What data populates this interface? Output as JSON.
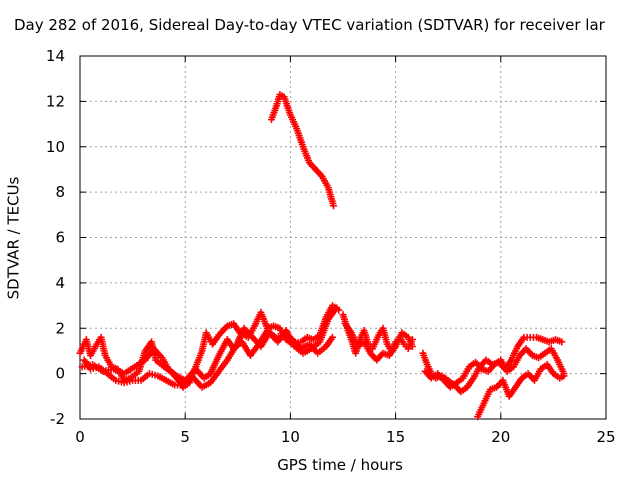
{
  "chart_data": {
    "type": "scatter",
    "title": "Day 282 of 2016, Sidereal Day-to-day VTEC variation (SDTVAR) for receiver lar",
    "xlabel": "GPS time / hours",
    "ylabel": "SDTVAR / TECUs",
    "xlim": [
      0,
      25
    ],
    "ylim": [
      -2,
      14
    ],
    "xticks": [
      "0",
      "5",
      "10",
      "15",
      "20",
      "25"
    ],
    "yticks": [
      "-2",
      "0",
      "2",
      "4",
      "6",
      "8",
      "10",
      "12",
      "14"
    ],
    "grid": true,
    "marker": "plus",
    "color": "#ff0000",
    "series": [
      {
        "points": [
          [
            9.1,
            11.2
          ],
          [
            9.3,
            11.7
          ],
          [
            9.5,
            12.3
          ],
          [
            9.7,
            12.2
          ],
          [
            10.0,
            11.4
          ],
          [
            10.3,
            10.8
          ],
          [
            10.6,
            10.0
          ],
          [
            10.9,
            9.3
          ],
          [
            11.2,
            9.0
          ],
          [
            11.5,
            8.7
          ],
          [
            11.8,
            8.2
          ],
          [
            12.05,
            7.4
          ]
        ]
      },
      {
        "points": [
          [
            0.0,
            0.9
          ],
          [
            0.3,
            1.5
          ],
          [
            0.5,
            0.8
          ],
          [
            0.8,
            1.3
          ],
          [
            1.0,
            1.6
          ],
          [
            1.2,
            0.8
          ],
          [
            1.5,
            0.3
          ],
          [
            1.8,
            0.2
          ],
          [
            2.1,
            -0.3
          ],
          [
            2.4,
            -0.2
          ],
          [
            2.8,
            0.1
          ],
          [
            3.1,
            1.0
          ],
          [
            3.4,
            1.4
          ],
          [
            3.6,
            0.6
          ],
          [
            4.0,
            0.3
          ],
          [
            4.3,
            0.1
          ],
          [
            4.6,
            -0.2
          ],
          [
            4.9,
            -0.6
          ],
          [
            5.2,
            -0.4
          ],
          [
            5.5,
            0.3
          ],
          [
            5.8,
            1.0
          ],
          [
            6.0,
            1.8
          ],
          [
            6.3,
            1.3
          ],
          [
            6.6,
            1.7
          ],
          [
            7.0,
            2.1
          ],
          [
            7.3,
            2.2
          ],
          [
            7.6,
            1.8
          ],
          [
            8.0,
            1.6
          ],
          [
            8.3,
            2.1
          ],
          [
            8.6,
            2.7
          ],
          [
            8.9,
            2.0
          ],
          [
            9.2,
            2.1
          ],
          [
            9.5,
            2.0
          ],
          [
            9.8,
            1.5
          ],
          [
            10.1,
            1.3
          ],
          [
            10.5,
            1.4
          ],
          [
            10.8,
            1.6
          ],
          [
            11.1,
            1.5
          ],
          [
            11.4,
            1.7
          ],
          [
            11.7,
            2.5
          ],
          [
            12.0,
            3.0
          ],
          [
            12.3,
            2.8
          ]
        ]
      },
      {
        "points": [
          [
            0.2,
            0.6
          ],
          [
            0.5,
            0.2
          ],
          [
            0.9,
            0.3
          ],
          [
            1.3,
            0.0
          ],
          [
            1.7,
            -0.3
          ],
          [
            2.1,
            -0.4
          ],
          [
            2.5,
            -0.3
          ],
          [
            2.9,
            -0.3
          ],
          [
            3.3,
            0.0
          ],
          [
            3.7,
            -0.1
          ],
          [
            4.1,
            -0.3
          ],
          [
            4.5,
            -0.5
          ],
          [
            4.9,
            -0.5
          ],
          [
            5.2,
            -0.1
          ],
          [
            5.5,
            0.2
          ],
          [
            5.9,
            -0.2
          ],
          [
            6.2,
            0.0
          ],
          [
            6.6,
            0.8
          ],
          [
            7.0,
            1.5
          ],
          [
            7.3,
            1.1
          ],
          [
            7.7,
            1.4
          ],
          [
            8.1,
            0.8
          ],
          [
            8.5,
            1.3
          ],
          [
            8.9,
            1.9
          ],
          [
            9.3,
            1.6
          ],
          [
            9.7,
            1.7
          ],
          [
            10.1,
            1.5
          ],
          [
            10.5,
            1.1
          ],
          [
            10.9,
            1.3
          ],
          [
            11.3,
            0.9
          ],
          [
            11.7,
            1.2
          ],
          [
            12.0,
            1.6
          ]
        ]
      },
      {
        "points": [
          [
            0.1,
            0.3
          ],
          [
            0.6,
            0.4
          ],
          [
            1.1,
            0.1
          ],
          [
            1.6,
            0.2
          ],
          [
            2.1,
            0.0
          ],
          [
            2.6,
            0.3
          ],
          [
            3.1,
            0.6
          ],
          [
            3.5,
            1.1
          ],
          [
            3.9,
            0.7
          ],
          [
            4.2,
            0.2
          ],
          [
            4.6,
            -0.1
          ],
          [
            5.0,
            -0.3
          ],
          [
            5.4,
            -0.2
          ],
          [
            5.8,
            -0.6
          ],
          [
            6.2,
            -0.4
          ],
          [
            6.6,
            0.1
          ],
          [
            7.0,
            0.6
          ],
          [
            7.4,
            1.2
          ],
          [
            7.8,
            2.0
          ],
          [
            8.2,
            1.6
          ],
          [
            8.6,
            1.2
          ],
          [
            9.0,
            1.8
          ],
          [
            9.4,
            1.4
          ],
          [
            9.8,
            1.9
          ],
          [
            10.2,
            1.2
          ],
          [
            10.6,
            0.9
          ],
          [
            11.0,
            1.1
          ],
          [
            11.4,
            1.4
          ],
          [
            11.8,
            2.4
          ],
          [
            12.2,
            2.9
          ]
        ]
      },
      {
        "points": [
          [
            12.5,
            2.6
          ],
          [
            12.7,
            2.0
          ],
          [
            12.9,
            1.5
          ],
          [
            13.1,
            0.9
          ],
          [
            13.3,
            1.5
          ],
          [
            13.5,
            1.9
          ],
          [
            13.7,
            1.3
          ],
          [
            13.9,
            1.1
          ],
          [
            14.2,
            1.7
          ],
          [
            14.4,
            2.0
          ],
          [
            14.6,
            1.3
          ],
          [
            14.8,
            1.0
          ],
          [
            15.0,
            1.4
          ],
          [
            15.2,
            1.6
          ],
          [
            15.4,
            1.3
          ],
          [
            15.6,
            1.1
          ],
          [
            15.8,
            1.5
          ]
        ]
      },
      {
        "points": [
          [
            12.6,
            2.2
          ],
          [
            12.9,
            1.8
          ],
          [
            13.2,
            1.2
          ],
          [
            13.5,
            1.4
          ],
          [
            13.8,
            0.9
          ],
          [
            14.1,
            0.6
          ],
          [
            14.4,
            0.9
          ],
          [
            14.7,
            0.8
          ],
          [
            15.0,
            1.2
          ],
          [
            15.3,
            1.8
          ],
          [
            15.6,
            1.6
          ],
          [
            15.8,
            1.2
          ]
        ]
      },
      {
        "points": [
          [
            16.3,
            0.9
          ],
          [
            16.5,
            0.4
          ],
          [
            16.7,
            0.0
          ],
          [
            16.9,
            -0.2
          ],
          [
            17.2,
            -0.1
          ],
          [
            17.5,
            -0.3
          ],
          [
            17.8,
            -0.5
          ],
          [
            18.1,
            -0.8
          ],
          [
            18.4,
            -0.6
          ],
          [
            18.7,
            -0.2
          ],
          [
            19.0,
            0.3
          ],
          [
            19.3,
            0.6
          ],
          [
            19.6,
            0.4
          ],
          [
            19.9,
            0.5
          ],
          [
            20.2,
            0.2
          ],
          [
            20.5,
            0.6
          ],
          [
            20.8,
            1.2
          ],
          [
            21.1,
            1.6
          ],
          [
            21.4,
            1.6
          ],
          [
            21.7,
            1.6
          ],
          [
            22.0,
            1.5
          ],
          [
            22.3,
            1.4
          ],
          [
            22.6,
            1.5
          ],
          [
            22.9,
            1.4
          ]
        ]
      },
      {
        "points": [
          [
            16.4,
            0.1
          ],
          [
            16.7,
            -0.2
          ],
          [
            17.0,
            0.0
          ],
          [
            17.3,
            -0.3
          ],
          [
            17.6,
            -0.6
          ],
          [
            17.9,
            -0.4
          ],
          [
            18.2,
            -0.2
          ],
          [
            18.5,
            0.3
          ],
          [
            18.8,
            0.5
          ],
          [
            19.1,
            0.2
          ],
          [
            19.4,
            0.1
          ],
          [
            19.7,
            0.4
          ],
          [
            20.0,
            0.6
          ],
          [
            20.3,
            0.1
          ],
          [
            20.6,
            0.3
          ],
          [
            20.9,
            0.8
          ],
          [
            21.2,
            1.1
          ],
          [
            21.5,
            0.8
          ],
          [
            21.8,
            0.7
          ],
          [
            22.1,
            0.9
          ],
          [
            22.4,
            1.1
          ],
          [
            22.7,
            0.6
          ],
          [
            23.0,
            0.0
          ]
        ]
      },
      {
        "points": [
          [
            18.9,
            -1.9
          ],
          [
            19.1,
            -1.5
          ],
          [
            19.3,
            -1.1
          ],
          [
            19.5,
            -0.7
          ],
          [
            19.8,
            -0.6
          ],
          [
            20.1,
            -0.3
          ],
          [
            20.4,
            -1.0
          ],
          [
            20.7,
            -0.6
          ],
          [
            21.0,
            -0.2
          ],
          [
            21.3,
            0.0
          ],
          [
            21.6,
            -0.3
          ],
          [
            21.9,
            0.2
          ],
          [
            22.2,
            0.4
          ],
          [
            22.5,
            0.0
          ],
          [
            22.8,
            -0.2
          ],
          [
            23.0,
            -0.1
          ]
        ]
      }
    ]
  }
}
